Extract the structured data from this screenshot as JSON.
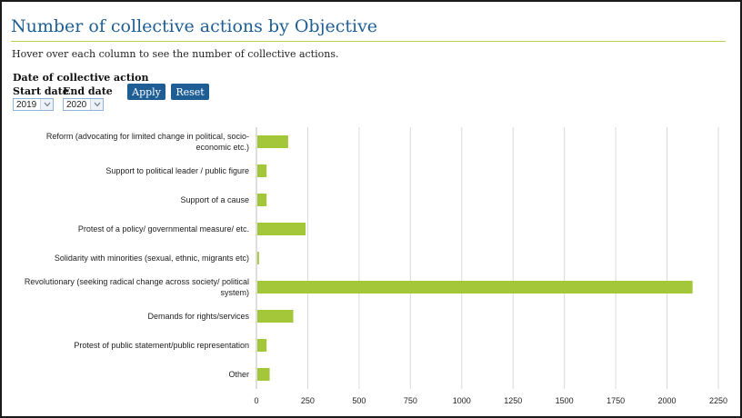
{
  "header": {
    "title": "Number of collective actions by Objective",
    "subtitle": "Hover over each column to see the number of collective actions."
  },
  "filters": {
    "title": "Date of collective action",
    "start_label": "Start date",
    "end_label": "End date",
    "start_value": "2019",
    "end_value": "2020",
    "apply_label": "Apply",
    "reset_label": "Reset"
  },
  "colors": {
    "accent": "#1e5e95",
    "bar": "#a4c639",
    "rule": "#b9cf4b"
  },
  "chart_data": {
    "type": "bar",
    "orientation": "horizontal",
    "categories": [
      "Reform (advocating for limited change in political, socio-economic etc.)",
      "Support to political leader / public figure",
      "Support of a cause",
      "Protest of a policy/ governmental measure/ etc.",
      "Solidarity with minorities (sexual, ethnic, migrants etc)",
      "Revolutionary (seeking radical change across society/ political system)",
      "Demands for rights/services",
      "Protest of public statement/public representation",
      "Other"
    ],
    "category_lines": [
      [
        "Reform (advocating for limited change in political, socio-",
        "economic etc.)"
      ],
      [
        "Support to political leader / public figure"
      ],
      [
        "Support of a cause"
      ],
      [
        "Protest of a policy/ governmental measure/ etc."
      ],
      [
        "Solidarity with minorities (sexual, ethnic, migrants etc)"
      ],
      [
        "Revolutionary (seeking radical change across society/ political",
        "system)"
      ],
      [
        "Demands for rights/services"
      ],
      [
        "Protest of public statement/public representation"
      ],
      [
        "Other"
      ]
    ],
    "values": [
      150,
      45,
      45,
      235,
      8,
      2120,
      175,
      45,
      60
    ],
    "xlim": [
      0,
      2250
    ],
    "xticks": [
      0,
      250,
      500,
      750,
      1000,
      1250,
      1500,
      1750,
      2000,
      2250
    ],
    "grid": true,
    "legend": "none"
  }
}
